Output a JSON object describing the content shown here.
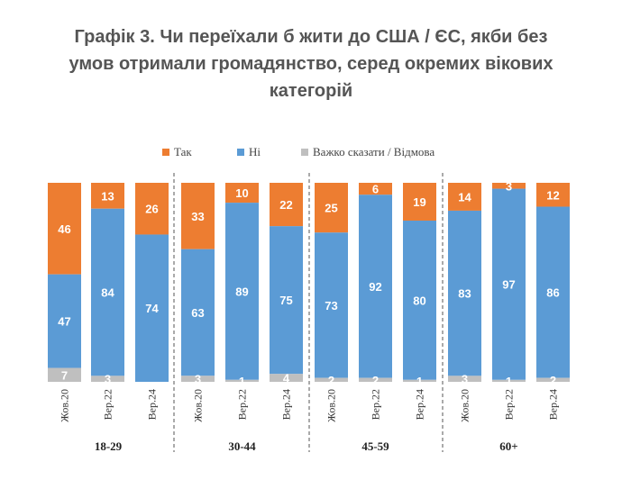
{
  "chart_data": {
    "type": "bar",
    "stacked": true,
    "title_lines": [
      "Графік 3. Чи переїхали б жити до США / ЄС, якби без",
      "умов отримали громадянство, серед окремих вікових",
      "категорій"
    ],
    "legend": [
      "Так",
      "Ні",
      "Важко сказати / Відмова"
    ],
    "legend_placement": "top",
    "colors": [
      "#ED7D31",
      "#5B9BD5",
      "#BFBFBF"
    ],
    "ylim": [
      0,
      100
    ],
    "groups": [
      {
        "label": "18-29",
        "bars": [
          {
            "category": "Жов.20",
            "values": [
              46,
              47,
              7
            ],
            "labels": [
              "46",
              "47",
              "7"
            ]
          },
          {
            "category": "Вер.22",
            "values": [
              13,
              84,
              3
            ],
            "labels": [
              "13",
              "84",
              "3"
            ]
          },
          {
            "category": "Вер.24",
            "values": [
              26,
              74,
              0
            ],
            "labels": [
              "26",
              "74",
              "0"
            ]
          }
        ]
      },
      {
        "label": "30-44",
        "bars": [
          {
            "category": "Жов.20",
            "values": [
              33,
              63,
              3
            ],
            "labels": [
              "33",
              "63",
              "3"
            ]
          },
          {
            "category": "Вер.22",
            "values": [
              10,
              89,
              1
            ],
            "labels": [
              "10",
              "89",
              "1"
            ]
          },
          {
            "category": "Вер.24",
            "values": [
              22,
              75,
              4
            ],
            "labels": [
              "22",
              "75",
              "4"
            ]
          }
        ]
      },
      {
        "label": "45-59",
        "bars": [
          {
            "category": "Жов.20",
            "values": [
              25,
              73,
              2
            ],
            "labels": [
              "25",
              "73",
              "2"
            ]
          },
          {
            "category": "Вер.22",
            "values": [
              6,
              92,
              2
            ],
            "labels": [
              "6",
              "92",
              "2"
            ]
          },
          {
            "category": "Вер.24",
            "values": [
              19,
              80,
              1
            ],
            "labels": [
              "19",
              "80",
              "1"
            ]
          }
        ]
      },
      {
        "label": "60+",
        "bars": [
          {
            "category": "Жов.20",
            "values": [
              14,
              83,
              3
            ],
            "labels": [
              "14",
              "83",
              "3"
            ]
          },
          {
            "category": "Вер.22",
            "values": [
              3,
              97,
              1
            ],
            "labels": [
              "3",
              "97",
              "1"
            ]
          },
          {
            "category": "Вер.24",
            "values": [
              12,
              86,
              2
            ],
            "labels": [
              "12",
              "86",
              "2"
            ]
          }
        ]
      }
    ]
  }
}
